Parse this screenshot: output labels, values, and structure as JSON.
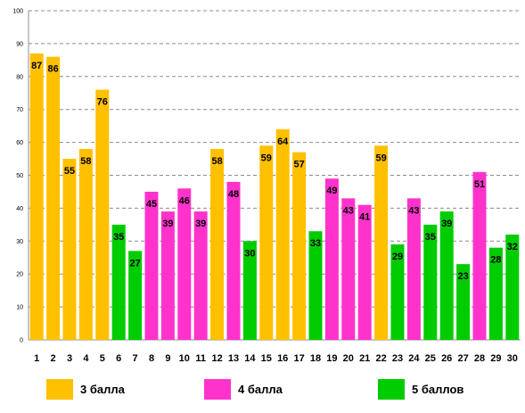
{
  "chart_data": {
    "type": "bar",
    "categories": [
      "1",
      "2",
      "3",
      "4",
      "5",
      "6",
      "7",
      "8",
      "9",
      "10",
      "11",
      "12",
      "13",
      "14",
      "15",
      "16",
      "17",
      "18",
      "19",
      "20",
      "21",
      "22",
      "23",
      "24",
      "25",
      "26",
      "27",
      "28",
      "29",
      "30"
    ],
    "values": [
      87,
      86,
      55,
      58,
      76,
      35,
      27,
      45,
      39,
      46,
      39,
      58,
      48,
      30,
      59,
      64,
      57,
      33,
      49,
      43,
      41,
      59,
      29,
      43,
      35,
      39,
      23,
      51,
      28,
      32
    ],
    "groups": [
      0,
      0,
      0,
      0,
      0,
      2,
      2,
      1,
      1,
      1,
      1,
      0,
      1,
      2,
      0,
      0,
      0,
      2,
      1,
      1,
      1,
      0,
      2,
      1,
      2,
      2,
      2,
      1,
      2,
      2
    ],
    "ylim": [
      0,
      100
    ],
    "yticks": [
      0,
      10,
      20,
      30,
      40,
      50,
      60,
      70,
      80,
      90,
      100
    ],
    "grid": true,
    "legend_position": "bottom",
    "series": [
      {
        "name": "3 балла",
        "color": "#FFC000"
      },
      {
        "name": "4 балла",
        "color": "#FF33CC"
      },
      {
        "name": "5 баллов",
        "color": "#00CC00"
      }
    ]
  }
}
